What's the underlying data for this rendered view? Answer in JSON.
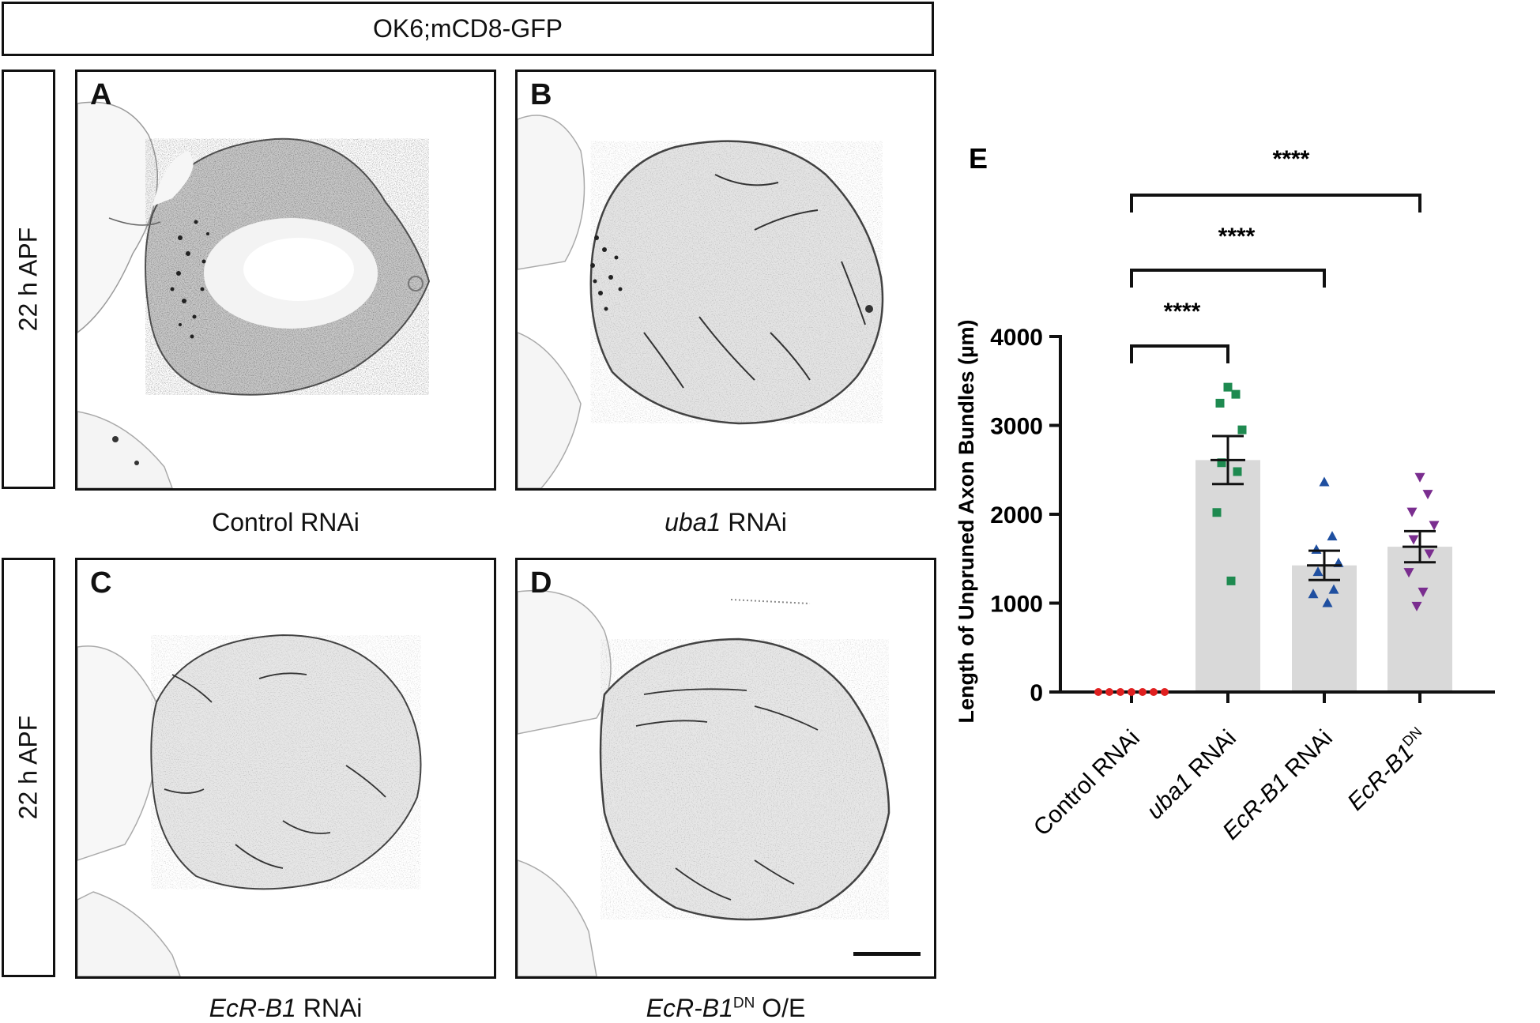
{
  "header": {
    "genotype": "OK6;mCD8-GFP"
  },
  "rows": [
    {
      "stage_label": "22 h APF"
    },
    {
      "stage_label": "22 h APF"
    }
  ],
  "panels": [
    {
      "letter": "A",
      "caption_italic": "",
      "caption_sup": "",
      "caption_rest": "Control RNAi"
    },
    {
      "letter": "B",
      "caption_italic": "uba1",
      "caption_sup": "",
      "caption_rest": " RNAi"
    },
    {
      "letter": "C",
      "caption_italic": "EcR-B1",
      "caption_sup": "",
      "caption_rest": " RNAi"
    },
    {
      "letter": "D",
      "caption_italic": "EcR-B1",
      "caption_sup": "DN",
      "caption_rest": " O/E"
    }
  ],
  "chart": {
    "panel_letter": "E"
  },
  "chart_data": {
    "type": "bar",
    "title": "",
    "xlabel": "",
    "ylabel": "Length of Unpruned Axon Bundles (µm)",
    "ylim": [
      0,
      4000
    ],
    "yticks": [
      0,
      1000,
      2000,
      3000,
      4000
    ],
    "categories": [
      {
        "italic": "",
        "sup": "",
        "rest": "Control RNAi"
      },
      {
        "italic": "uba1",
        "sup": "",
        "rest": " RNAi"
      },
      {
        "italic": "EcR-B1",
        "sup": "",
        "rest": " RNAi"
      },
      {
        "italic": "EcR-B1",
        "sup": "DN",
        "rest": ""
      }
    ],
    "means": [
      0,
      2610,
      1425,
      1635
    ],
    "sem": [
      0,
      270,
      165,
      175
    ],
    "points": [
      [
        0,
        0,
        0,
        0,
        0,
        0,
        0
      ],
      [
        3430,
        3350,
        3250,
        2950,
        2580,
        2480,
        2020,
        1250
      ],
      [
        2360,
        1750,
        1600,
        1450,
        1350,
        1150,
        1100,
        1000
      ],
      [
        2420,
        2230,
        2030,
        1880,
        1720,
        1560,
        1350,
        1130,
        970
      ]
    ],
    "markers": [
      "circle",
      "square",
      "triangle-up",
      "triangle-down"
    ],
    "colors": [
      "#e02020",
      "#1e8a50",
      "#1f4fa0",
      "#7a2d8f"
    ],
    "bar_color": "#d9d9d9",
    "comparisons": [
      {
        "from": 0,
        "to": 1,
        "label": "****"
      },
      {
        "from": 0,
        "to": 2,
        "label": "****"
      },
      {
        "from": 0,
        "to": 3,
        "label": "****"
      }
    ]
  }
}
